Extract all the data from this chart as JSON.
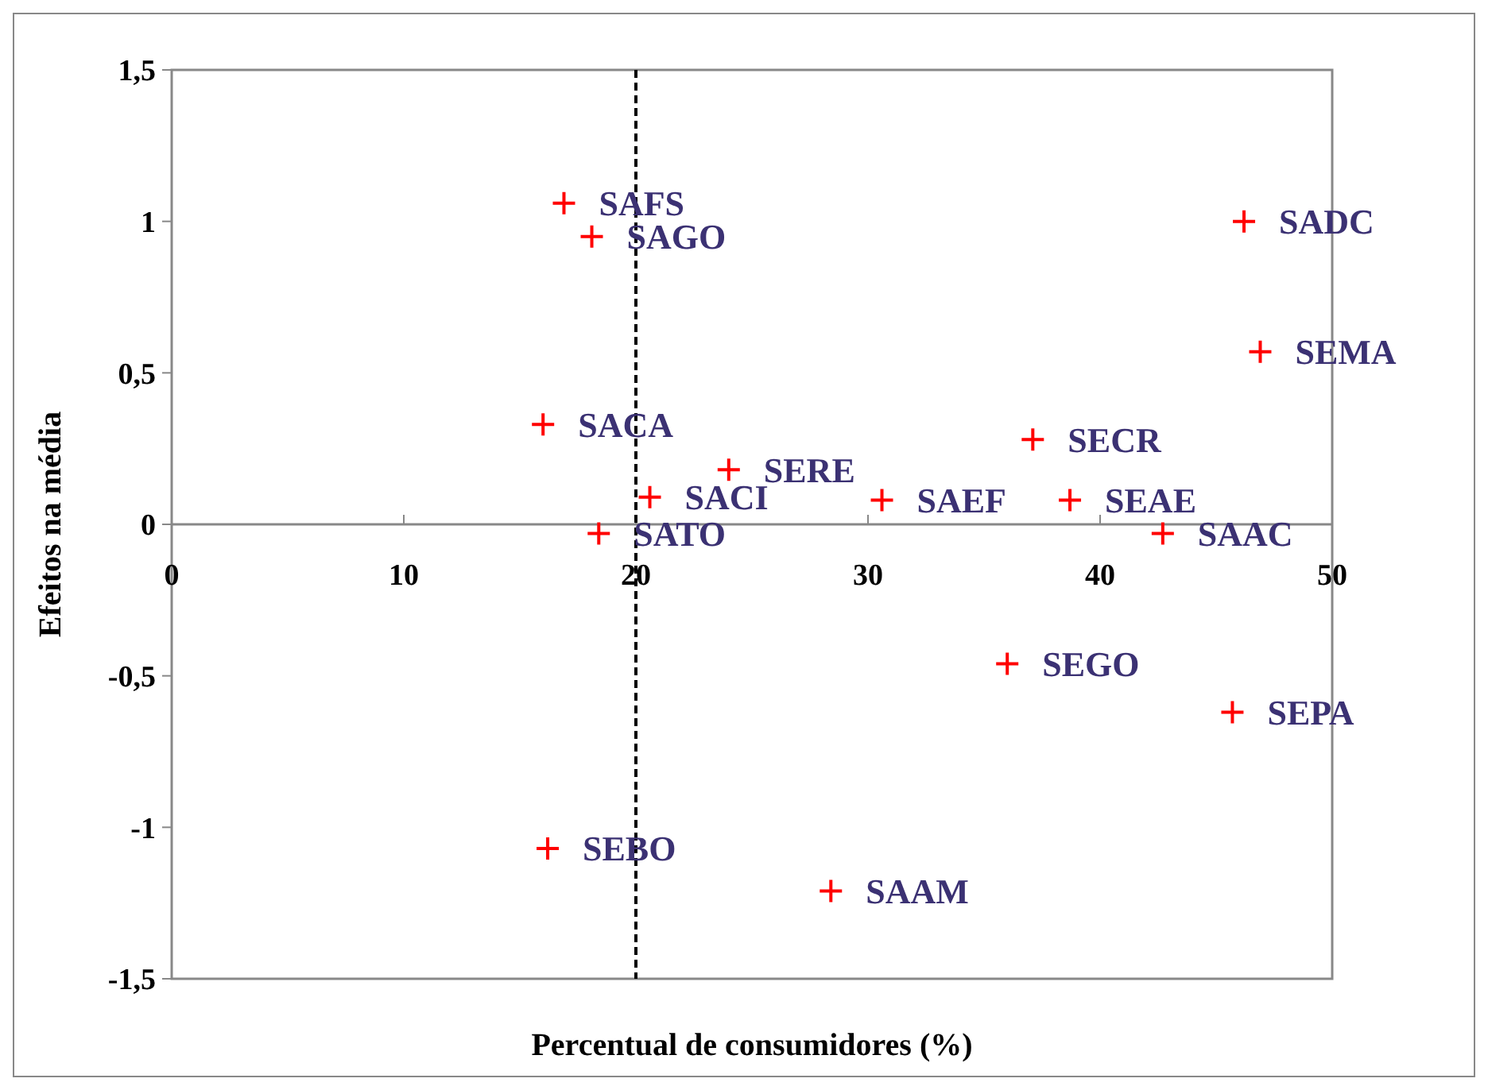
{
  "chart_data": {
    "type": "scatter",
    "xlabel": "Percentual de consumidores (%)",
    "ylabel": "Efeitos na média",
    "x": [
      16.9,
      18.1,
      46.2,
      46.9,
      16.0,
      37.1,
      24.0,
      20.6,
      30.6,
      38.7,
      18.4,
      42.7,
      36.0,
      45.7,
      16.2,
      28.4
    ],
    "series": [
      {
        "color": "#ff0000",
        "values": [
          1.06,
          0.95,
          1.0,
          0.57,
          0.33,
          0.28,
          0.18,
          0.09,
          0.08,
          0.08,
          -0.03,
          -0.03,
          -0.46,
          -0.62,
          -1.07,
          -1.21
        ]
      }
    ],
    "marker": "cross",
    "xlim": [
      0,
      50
    ],
    "xticks": [
      0,
      10,
      20,
      30,
      40,
      50
    ],
    "ylim": [
      -1.5,
      1.5
    ],
    "yticks": [
      {
        "value": -1.5,
        "label": "-1,5"
      },
      {
        "value": -1,
        "label": "-1"
      },
      {
        "value": -0.5,
        "label": "-0,5"
      },
      {
        "value": 0,
        "label": "0"
      },
      {
        "value": 0.5,
        "label": "0,5"
      },
      {
        "value": 1,
        "label": "1"
      },
      {
        "value": 1.5,
        "label": "1,5"
      }
    ],
    "grid": false,
    "ref_lines": [
      {
        "axis": "x",
        "value": 20,
        "line_style": "dashed",
        "color": "#000000"
      }
    ],
    "annotations": [
      {
        "text": "SAFS",
        "x": 16.9,
        "y": 1.06
      },
      {
        "text": "SAGO",
        "x": 18.1,
        "y": 0.95
      },
      {
        "text": "SADC",
        "x": 46.2,
        "y": 1.0
      },
      {
        "text": "SEMA",
        "x": 46.9,
        "y": 0.57
      },
      {
        "text": "SACA",
        "x": 16.0,
        "y": 0.33
      },
      {
        "text": "SECR",
        "x": 37.1,
        "y": 0.28
      },
      {
        "text": "SERE",
        "x": 24.0,
        "y": 0.18
      },
      {
        "text": "SACI",
        "x": 20.6,
        "y": 0.09
      },
      {
        "text": "SAEF",
        "x": 30.6,
        "y": 0.08
      },
      {
        "text": "SEAE",
        "x": 38.7,
        "y": 0.08
      },
      {
        "text": "SATO",
        "x": 18.4,
        "y": -0.03
      },
      {
        "text": "SAAC",
        "x": 42.7,
        "y": -0.03
      },
      {
        "text": "SEGO",
        "x": 36.0,
        "y": -0.46
      },
      {
        "text": "SEPA",
        "x": 45.7,
        "y": -0.62
      },
      {
        "text": "SEBO",
        "x": 16.2,
        "y": -1.07
      },
      {
        "text": "SAAM",
        "x": 28.4,
        "y": -1.21
      }
    ]
  }
}
